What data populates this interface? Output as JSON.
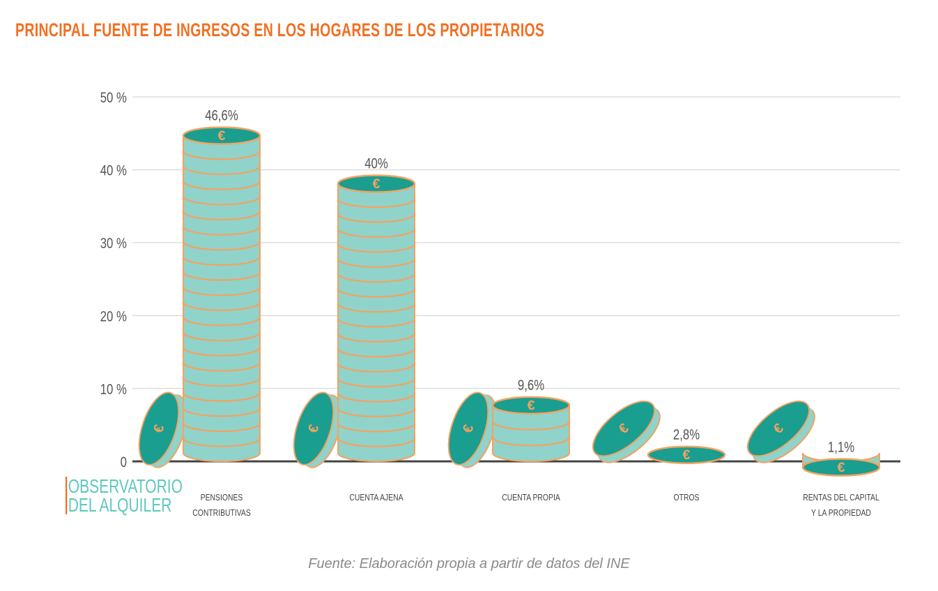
{
  "chart_data": {
    "type": "bar",
    "title": "PRINCIPAL FUENTE DE INGRESOS EN LOS HOGARES DE LOS PROPIETARIOS",
    "categories": [
      [
        "PENSIONES",
        "CONTRIBUTIVAS"
      ],
      [
        "CUENTA AJENA"
      ],
      [
        "CUENTA PROPIA"
      ],
      [
        "OTROS"
      ],
      [
        "RENTAS DEL CAPITAL",
        "Y LA PROPIEDAD"
      ]
    ],
    "values": [
      46.6,
      40,
      9.6,
      2.8,
      1.1
    ],
    "value_labels": [
      "46,6%",
      "40%",
      "9,6%",
      "2,8%",
      "1,1%"
    ],
    "ylim": [
      0,
      50
    ],
    "yticks": [
      0,
      10,
      20,
      30,
      40,
      50
    ],
    "ytick_labels": [
      "0",
      "10 %",
      "20 %",
      "30 %",
      "40 %",
      "50 %"
    ],
    "grid": true,
    "mark_style": "stacked euro coins",
    "colors": {
      "coin_face": "#1a9e8f",
      "coin_side": "#8fd3cb",
      "coin_edge": "#f4a261",
      "title": "#f36f21",
      "grid": "#dddddd",
      "axis": "#444444"
    }
  },
  "logo": {
    "line1": "OBSERVATORIO",
    "line2": "DEL ALQUILER"
  },
  "source": "Fuente: Elaboración propia a partir de datos del INE"
}
